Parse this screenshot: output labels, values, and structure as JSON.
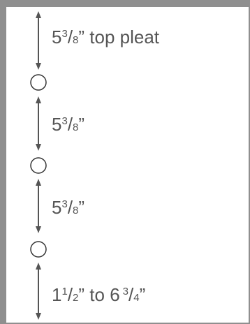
{
  "segments": [
    {
      "whole": "5",
      "num": "3",
      "slash": "/",
      "den": "8",
      "mark": "”",
      "suffix": " top pleat"
    },
    {
      "whole": "5",
      "num": "3",
      "slash": "/",
      "den": "8",
      "mark": "”",
      "suffix": ""
    },
    {
      "whole": "5",
      "num": "3",
      "slash": "/",
      "den": "8",
      "mark": "”",
      "suffix": ""
    },
    {
      "whole": "1",
      "num": "1",
      "slash": "/",
      "den": "2",
      "mark": "”",
      "suffix": " to 6",
      "num2": "3",
      "slash2": "/",
      "den2": "4",
      "mark2": "”"
    }
  ],
  "colors": {
    "frame": "#8f8f8f",
    "ink": "#555555",
    "ring": "#333333"
  },
  "icons": [
    "double-arrow-icon",
    "ring-icon"
  ]
}
